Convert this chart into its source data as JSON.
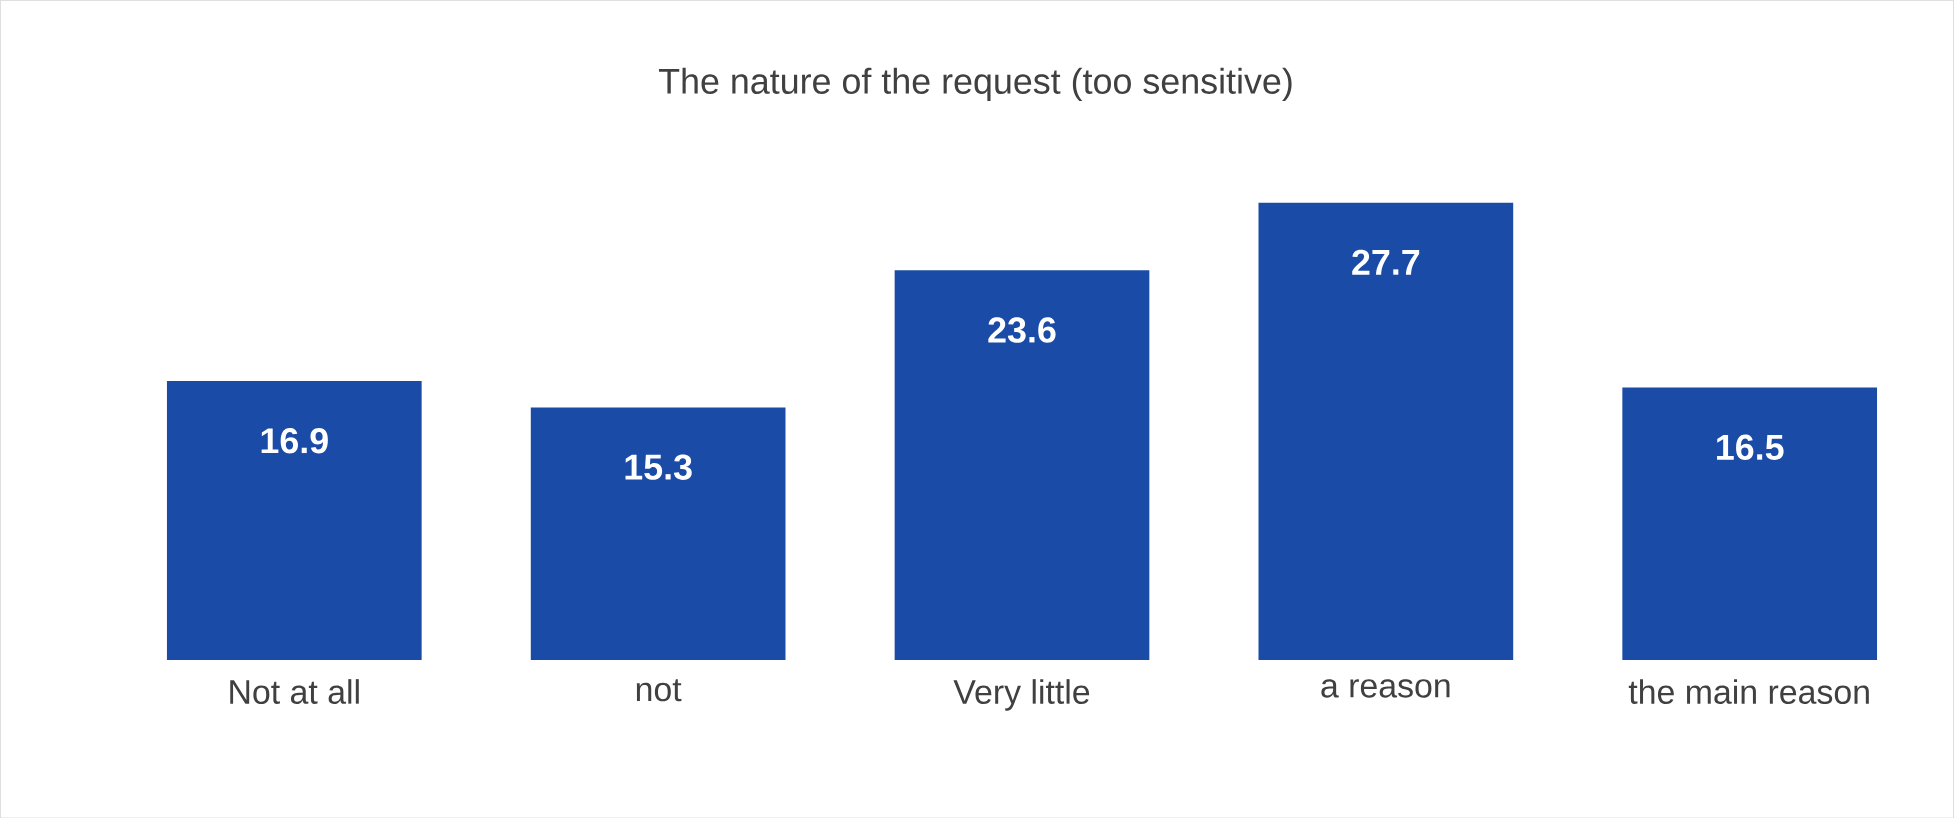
{
  "chart_data": {
    "type": "bar",
    "title": "The nature of the request (too sensitive)",
    "categories": [
      "Not at all",
      "not",
      "Very little",
      "a reason",
      "the main reason"
    ],
    "values": [
      16.9,
      15.3,
      23.6,
      27.7,
      16.5
    ],
    "color": "#1a4ba6",
    "data_labels": true
  }
}
